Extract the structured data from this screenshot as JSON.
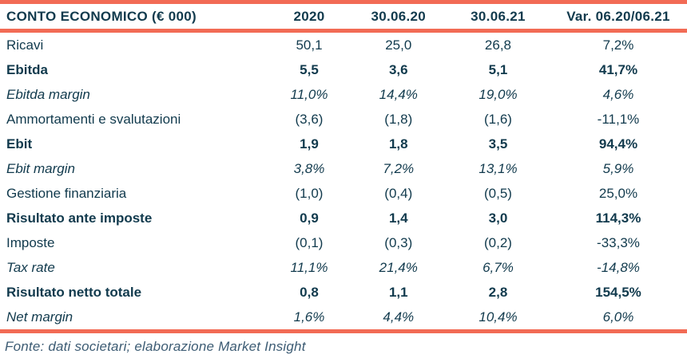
{
  "table": {
    "title": "CONTO ECONOMICO (€ 000)",
    "columns": [
      "2020",
      "30.06.20",
      "30.06.21",
      "Var. 06.20/06.21"
    ],
    "rows": [
      {
        "label": "Ricavi",
        "style": "normal",
        "values": [
          "50,1",
          "25,0",
          "26,8",
          "7,2%"
        ]
      },
      {
        "label": "Ebitda",
        "style": "bold",
        "values": [
          "5,5",
          "3,6",
          "5,1",
          "41,7%"
        ]
      },
      {
        "label": "Ebitda margin",
        "style": "italic",
        "values": [
          "11,0%",
          "14,4%",
          "19,0%",
          "4,6%"
        ]
      },
      {
        "label": "Ammortamenti e svalutazioni",
        "style": "normal",
        "values": [
          "(3,6)",
          "(1,8)",
          "(1,6)",
          "-11,1%"
        ]
      },
      {
        "label": "Ebit",
        "style": "bold",
        "values": [
          "1,9",
          "1,8",
          "3,5",
          "94,4%"
        ]
      },
      {
        "label": "Ebit margin",
        "style": "italic",
        "values": [
          "3,8%",
          "7,2%",
          "13,1%",
          "5,9%"
        ]
      },
      {
        "label": "Gestione finanziaria",
        "style": "normal",
        "values": [
          "(1,0)",
          "(0,4)",
          "(0,5)",
          "25,0%"
        ]
      },
      {
        "label": "Risultato ante imposte",
        "style": "bold",
        "values": [
          "0,9",
          "1,4",
          "3,0",
          "114,3%"
        ]
      },
      {
        "label": "Imposte",
        "style": "normal",
        "values": [
          "(0,1)",
          "(0,3)",
          "(0,2)",
          "-33,3%"
        ]
      },
      {
        "label": "Tax rate",
        "style": "italic",
        "values": [
          "11,1%",
          "21,4%",
          "6,7%",
          "-14,8%"
        ]
      },
      {
        "label": "Risultato netto totale",
        "style": "bold",
        "values": [
          "0,8",
          "1,1",
          "2,8",
          "154,5%"
        ]
      },
      {
        "label": "Net margin",
        "style": "italic",
        "values": [
          "1,6%",
          "4,4%",
          "10,4%",
          "6,0%"
        ]
      }
    ]
  },
  "footer": {
    "source_note": "Fonte: dati societari; elaborazione Market Insight"
  },
  "colors": {
    "accent": "#F26B55",
    "text": "#113A4D",
    "footer_text": "#3D5C74"
  }
}
